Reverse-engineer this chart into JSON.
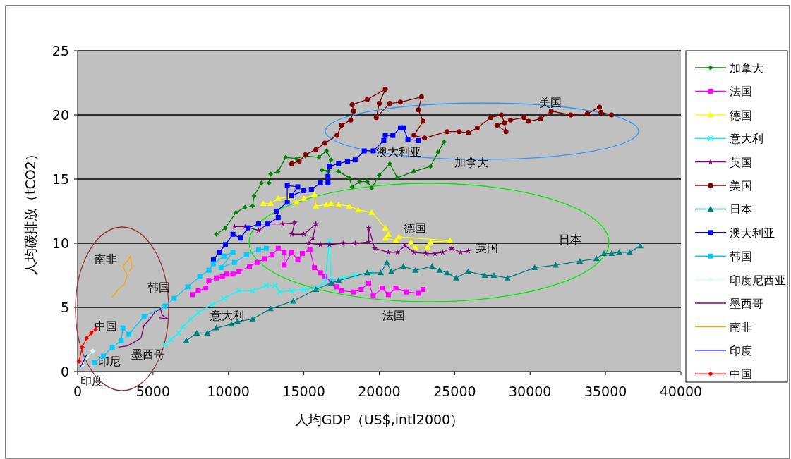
{
  "chart_data": {
    "type": "line",
    "xlabel": "人均GDP（US$,intl2000）",
    "ylabel": "人均碳排放（tCO2）",
    "xlim": [
      0,
      40000
    ],
    "xticks": [
      0,
      5000,
      10000,
      15000,
      20000,
      25000,
      30000,
      35000,
      40000
    ],
    "ylim": [
      0,
      25
    ],
    "yticks": [
      0,
      5,
      10,
      15,
      20,
      25
    ],
    "grid": "y",
    "legend": "right",
    "series": [
      {
        "name": "加拿大",
        "color": "#008000",
        "marker": "diamond",
        "x": [
          9200,
          9800,
          10500,
          11100,
          11600,
          11700,
          12200,
          12700,
          12800,
          13300,
          13800,
          14500,
          15100,
          16000,
          16500,
          16800,
          16600,
          16200,
          17300,
          18000,
          18200,
          18700,
          19200,
          19500,
          20000,
          20700,
          21200,
          22300,
          23400,
          23900,
          24300
        ],
        "values": [
          10.7,
          11.2,
          12.4,
          12.8,
          12.9,
          13.7,
          14.7,
          14.7,
          15.4,
          15.6,
          16.7,
          16.6,
          16.8,
          16.7,
          17.2,
          16.5,
          15.6,
          15.7,
          15.6,
          15.1,
          14.4,
          14.8,
          14.8,
          14.3,
          15.3,
          16.2,
          15.1,
          15.6,
          16.0,
          17.1,
          17.9
        ]
      },
      {
        "name": "法国",
        "color": "#ff00ff",
        "marker": "square",
        "x": [
          7600,
          8000,
          8500,
          8700,
          9200,
          9600,
          9900,
          10300,
          10700,
          11400,
          11900,
          12400,
          12900,
          13300,
          13700,
          13700,
          14200,
          14600,
          14900,
          15400,
          15700,
          16100,
          16400,
          16800,
          17200,
          17500,
          18300,
          18800,
          19300,
          19600,
          20200,
          20600,
          21100,
          21800,
          22600,
          22900
        ],
        "values": [
          6.0,
          6.3,
          6.5,
          7.1,
          7.3,
          7.4,
          7.6,
          7.6,
          7.8,
          8.2,
          8.5,
          8.8,
          9.1,
          9.6,
          9.3,
          8.3,
          9.3,
          8.7,
          9.2,
          9.5,
          8.1,
          7.7,
          7.4,
          7.0,
          6.6,
          6.3,
          6.2,
          6.4,
          6.9,
          5.9,
          6.5,
          6.0,
          6.5,
          6.2,
          6.1,
          6.4
        ]
      },
      {
        "name": "德国",
        "color": "#ffff00",
        "marker": "triangle",
        "x": [
          12300,
          12800,
          13300,
          14000,
          14500,
          15000,
          15700,
          15800,
          16500,
          16800,
          17300,
          18000,
          18600,
          19500,
          20400,
          20600,
          20400,
          21100,
          21300,
          24700,
          23400,
          23200,
          22400,
          22100
        ],
        "values": [
          13.1,
          13.1,
          13.5,
          13.6,
          13.2,
          13.5,
          13.8,
          12.9,
          13.0,
          13.1,
          13.0,
          12.9,
          12.6,
          12.4,
          11.2,
          10.7,
          10.4,
          10.2,
          10.5,
          10.2,
          10.1,
          9.7,
          9.7,
          10.1
        ]
      },
      {
        "name": "意大利",
        "color": "#00ffff",
        "marker": "cross",
        "x": [
          5800,
          6200,
          6700,
          7000,
          7500,
          8000,
          8900,
          9700,
          10700,
          11600,
          12500,
          13100,
          13400,
          14200,
          15000,
          15800,
          16400,
          16700,
          16800,
          17600,
          18400,
          19500
        ],
        "values": [
          2.1,
          2.5,
          3.0,
          3.5,
          4.1,
          4.6,
          5.2,
          5.7,
          6.3,
          6.3,
          6.7,
          6.7,
          6.2,
          6.3,
          6.4,
          6.5,
          7.0,
          10.2,
          7.1,
          7.3,
          7.5,
          7.7
        ]
      },
      {
        "name": "英国",
        "color": "#800080",
        "marker": "star",
        "x": [
          10400,
          11100,
          12000,
          12600,
          13600,
          14400,
          14200,
          15000,
          15800,
          15600,
          15300,
          16100,
          16700,
          17600,
          18400,
          19300,
          19300,
          19700,
          20600,
          21200,
          21700,
          22300,
          23100,
          23700,
          24200,
          24800,
          25400,
          25900
        ],
        "values": [
          11.3,
          11.3,
          11.0,
          11.5,
          11.5,
          11.6,
          10.7,
          10.7,
          11.5,
          10.4,
          10.0,
          9.9,
          9.9,
          10.0,
          10.0,
          10.1,
          11.2,
          9.6,
          9.3,
          9.3,
          9.8,
          9.3,
          9.2,
          9.2,
          9.3,
          9.6,
          9.3,
          9.4
        ]
      },
      {
        "name": "美国",
        "color": "#800000",
        "marker": "circle",
        "x": [
          14200,
          14700,
          15100,
          15800,
          16400,
          17200,
          17500,
          18100,
          18300,
          18200,
          19200,
          20400,
          20000,
          19800,
          20700,
          21400,
          22800,
          22600,
          22900,
          22300,
          23000,
          24500,
          25300,
          25900,
          26500,
          27400,
          28100,
          28300,
          28400,
          27800,
          28700,
          29600,
          29900,
          30700,
          31400,
          32700,
          33800,
          34600,
          34700,
          35400
        ],
        "values": [
          16.2,
          16.4,
          16.9,
          17.3,
          17.8,
          18.4,
          19.2,
          19.6,
          20.3,
          20.8,
          21.2,
          22.0,
          20.9,
          19.8,
          20.9,
          21.0,
          21.4,
          20.4,
          19.5,
          18.4,
          18.2,
          18.7,
          18.7,
          18.6,
          19.0,
          19.8,
          20.0,
          19.4,
          18.7,
          19.2,
          19.6,
          19.8,
          19.5,
          19.7,
          20.3,
          20.0,
          20.1,
          20.6,
          20.2,
          20.0
        ]
      },
      {
        "name": "日本",
        "color": "#008080",
        "marker": "triangle",
        "x": [
          7200,
          7900,
          8600,
          9200,
          10200,
          10600,
          11600,
          12800,
          14300,
          15800,
          16800,
          17300,
          19200,
          20100,
          20500,
          20800,
          21600,
          22400,
          23500,
          24000,
          24500,
          25100,
          25900,
          27000,
          27600,
          28500,
          30300,
          31700,
          33300,
          34400,
          34900,
          35400,
          35900,
          36600,
          37300
        ],
        "values": [
          2.4,
          3.0,
          3.0,
          3.4,
          3.7,
          3.9,
          4.1,
          4.9,
          5.5,
          6.4,
          6.9,
          7.1,
          7.7,
          7.7,
          8.5,
          7.8,
          8.2,
          7.9,
          8.2,
          7.9,
          7.7,
          7.3,
          7.8,
          7.5,
          7.5,
          7.3,
          8.1,
          8.3,
          8.6,
          8.8,
          9.2,
          9.2,
          9.3,
          9.3,
          9.8
        ]
      },
      {
        "name": "澳大利亚",
        "color": "#0000ff",
        "marker": "square",
        "x": [
          9000,
          9400,
          9800,
          10300,
          10800,
          11300,
          12000,
          12600,
          13300,
          13200,
          13900,
          13900,
          14600,
          14200,
          15000,
          15500,
          16100,
          16600,
          16600,
          16700,
          17300,
          17900,
          18400,
          19000,
          19600,
          20300,
          20400,
          20900,
          21400,
          21600,
          21900,
          22600
        ],
        "values": [
          8.7,
          9.3,
          9.9,
          10.7,
          10.4,
          11.2,
          11.5,
          11.5,
          12.0,
          12.5,
          13.2,
          14.5,
          14.4,
          13.7,
          14.1,
          14.2,
          14.7,
          14.7,
          15.2,
          16.0,
          16.2,
          16.4,
          16.5,
          17.2,
          17.2,
          18.0,
          18.4,
          18.4,
          19.0,
          19.0,
          18.1,
          18.0
        ]
      },
      {
        "name": "韩国",
        "color": "#00ccff",
        "marker": "square",
        "x": [
          1100,
          1700,
          2300,
          2900,
          3000,
          3400,
          4400,
          5800,
          6400,
          7300,
          8100,
          8700,
          9000,
          9700,
          10300,
          9500,
          10400,
          11200,
          12000,
          12500
        ],
        "values": [
          0.7,
          1.2,
          1.9,
          2.4,
          3.4,
          2.9,
          4.3,
          5.1,
          5.7,
          6.6,
          7.4,
          7.9,
          8.4,
          9.0,
          9.3,
          8.1,
          8.5,
          9.1,
          9.5,
          9.6
        ]
      },
      {
        "name": "印度尼西亚",
        "color": "#ccffff",
        "marker": "diamond",
        "x": [
          300,
          600,
          1000
        ],
        "values": [
          0.5,
          1.1,
          1.6
        ]
      },
      {
        "name": "墨西哥",
        "color": "#800080",
        "marker": "none",
        "x": [
          2700,
          3300,
          4200,
          4400,
          4800,
          5100,
          5500,
          5600,
          6000,
          5400
        ],
        "values": [
          1.9,
          2.0,
          2.6,
          3.6,
          4.1,
          4.6,
          4.9,
          4.4,
          4.1,
          4.2
        ]
      },
      {
        "name": "南非",
        "color": "#ffa500",
        "marker": "none",
        "x": [
          2300,
          2700,
          3100,
          3300,
          3000,
          3300,
          3500,
          3600,
          3400
        ],
        "values": [
          5.8,
          6.4,
          6.8,
          7.5,
          8.2,
          8.6,
          9.0,
          8.1,
          7.8
        ]
      },
      {
        "name": "印度",
        "color": "#0000cc",
        "marker": "none",
        "x": [
          150,
          400,
          600
        ],
        "values": [
          0.3,
          0.8,
          1.3
        ]
      },
      {
        "name": "中国",
        "color": "#ff0000",
        "marker": "diamond",
        "x": [
          100,
          300,
          600,
          900,
          1200
        ],
        "values": [
          0.8,
          1.9,
          2.6,
          3.0,
          3.3
        ]
      }
    ],
    "annotations": [
      "美国",
      "澳大利亚",
      "加拿大",
      "德国",
      "英国",
      "日本",
      "法国",
      "意大利",
      "韩国",
      "南非",
      "中国",
      "墨西哥",
      "印尼",
      "印度"
    ]
  }
}
